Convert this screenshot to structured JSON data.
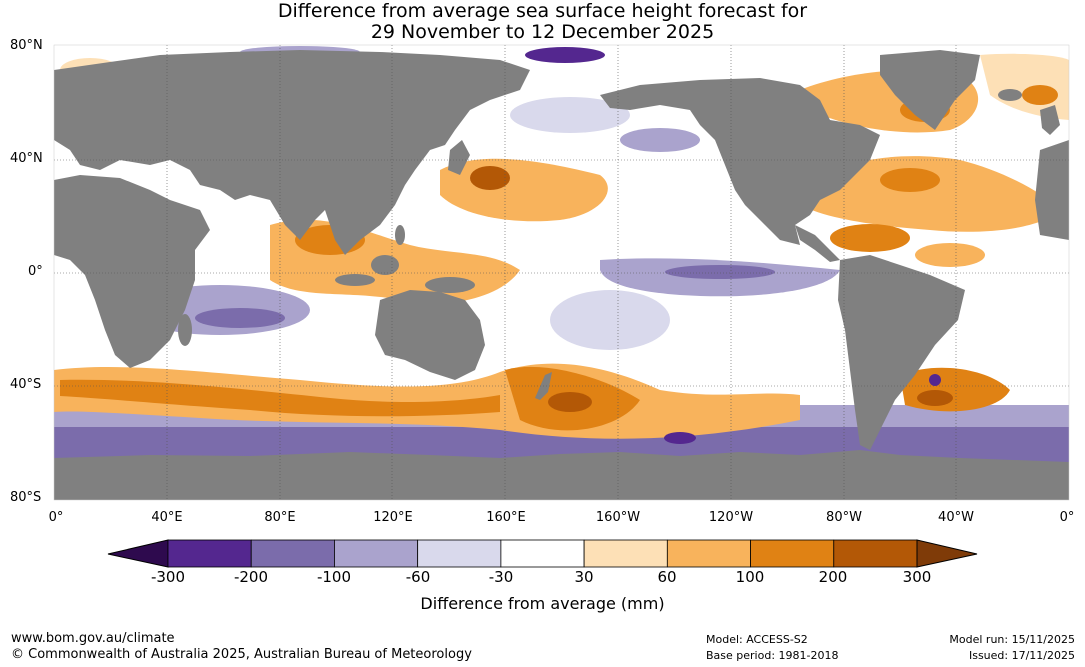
{
  "title": {
    "line1": "Difference from average sea surface height forecast for",
    "line2": "29 November to 12 December 2025"
  },
  "axes": {
    "lat_labels": [
      "80°N",
      "40°N",
      "0°",
      "40°S",
      "80°S"
    ],
    "lon_labels": [
      "0°",
      "40°E",
      "80°E",
      "120°E",
      "160°E",
      "160°W",
      "120°W",
      "80°W",
      "40°W",
      "0°"
    ]
  },
  "colorbar": {
    "title": "Difference from average (mm)",
    "tick_labels": [
      "-300",
      "-200",
      "-100",
      "-60",
      "-30",
      "30",
      "60",
      "100",
      "200",
      "300"
    ],
    "colors": [
      "#2e0a4e",
      "#54278f",
      "#7b6cab",
      "#aaa3cd",
      "#d9d9ec",
      "#ffffff",
      "#fde0b6",
      "#f8b35c",
      "#e08214",
      "#b35806",
      "#7f3b08"
    ]
  },
  "map_colors": {
    "land": "#808080",
    "ocean_neutral": "#ffffff"
  },
  "footer": {
    "url": "www.bom.gov.au/climate",
    "copyright": "© Commonwealth of Australia 2025, Australian Bureau of Meteorology",
    "model": "Model: ACCESS-S2",
    "base_period": "Base period: 1981-2018",
    "model_run": "Model run: 15/11/2025",
    "issued": "Issued: 17/11/2025"
  }
}
